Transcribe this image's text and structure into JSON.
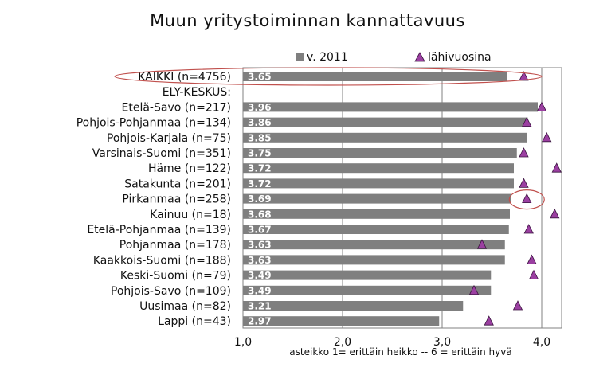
{
  "chart_data": {
    "type": "bar",
    "orientation": "horizontal",
    "title": "Muun yritystoiminnan kannattavuus",
    "xlabel": "asteikko 1= erittäin heikko -- 6 = erittäin hyvä",
    "xlim": [
      1.0,
      4.2
    ],
    "xticks": [
      "1,0",
      "2,0",
      "3,0",
      "4,0"
    ],
    "xtick_values": [
      1.0,
      2.0,
      3.0,
      4.0
    ],
    "grid": true,
    "legend_position": "top-right",
    "legend": {
      "bar_label": "v. 2011",
      "marker_label": "lähivuosina"
    },
    "colors": {
      "bar": "#7f7f7f",
      "marker_fill": "#9b3fa1",
      "marker_stroke": "#3b1440",
      "highlight": "#c0504d",
      "grid": "#808080"
    },
    "categories": [
      "KAIKKI (n=4756)",
      "ELY-KESKUS:",
      "Etelä-Savo (n=217)",
      "Pohjois-Pohjanmaa (n=134)",
      "Pohjois-Karjala (n=75)",
      "Varsinais-Suomi (n=351)",
      "Häme (n=122)",
      "Satakunta (n=201)",
      "Pirkanmaa (n=258)",
      "Kainuu (n=18)",
      "Etelä-Pohjanmaa (n=139)",
      "Pohjanmaa (n=178)",
      "Kaakkois-Suomi (n=188)",
      "Keski-Suomi (n=79)",
      "Pohjois-Savo (n=109)",
      "Uusimaa (n=82)",
      "Lappi (n=43)"
    ],
    "series": [
      {
        "name": "v. 2011",
        "kind": "bar",
        "values": [
          3.65,
          null,
          3.96,
          3.86,
          3.85,
          3.75,
          3.72,
          3.72,
          3.69,
          3.68,
          3.67,
          3.63,
          3.63,
          3.49,
          3.49,
          3.21,
          2.97
        ],
        "labels": [
          "3.65",
          "",
          "3.96",
          "3.86",
          "3.85",
          "3.75",
          "3.72",
          "3.72",
          "3.69",
          "3.68",
          "3.67",
          "3.63",
          "3.63",
          "3.49",
          "3.49",
          "3.21",
          "2.97"
        ]
      },
      {
        "name": "lähivuosina",
        "kind": "marker",
        "values": [
          3.82,
          null,
          4.0,
          3.85,
          4.05,
          3.82,
          4.15,
          3.82,
          3.85,
          4.13,
          3.87,
          3.4,
          3.9,
          3.92,
          3.32,
          3.76,
          3.47
        ]
      }
    ],
    "highlighted_categories": [
      "KAIKKI (n=4756)",
      "Pirkanmaa (n=258)"
    ]
  }
}
